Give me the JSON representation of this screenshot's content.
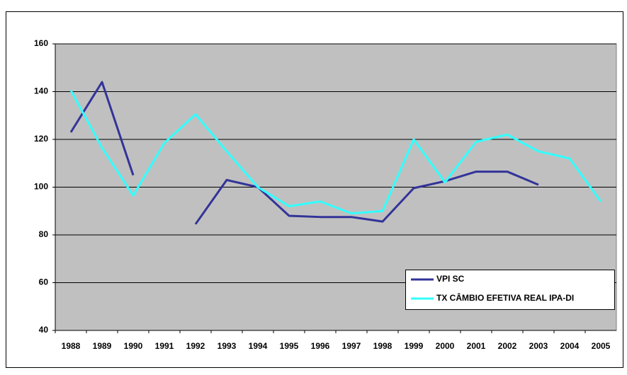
{
  "chart_data": {
    "type": "line",
    "categories": [
      "1988",
      "1989",
      "1990",
      "1991",
      "1992",
      "1993",
      "1994",
      "1995",
      "1996",
      "1997",
      "1998",
      "1999",
      "2000",
      "2001",
      "2002",
      "2003",
      "2004",
      "2005"
    ],
    "series": [
      {
        "name": "VPI SC",
        "color": "#333399",
        "values": [
          123,
          144,
          105,
          null,
          84.5,
          103,
          100,
          88,
          87.5,
          87.5,
          85.6,
          99.6,
          102.5,
          106.5,
          106.5,
          101,
          null,
          null
        ]
      },
      {
        "name": "TX CÂMBIO EFETIVA REAL IPA-DI",
        "color": "#33ffff",
        "values": [
          140.5,
          116.5,
          96.5,
          118.5,
          130.5,
          115,
          100,
          92,
          94,
          89,
          90,
          120,
          102,
          119,
          122,
          115,
          112,
          94
        ]
      }
    ],
    "ylim": [
      40,
      160
    ],
    "yticks": [
      40,
      60,
      80,
      100,
      120,
      140,
      160
    ],
    "grid": true,
    "legend": "lower-right"
  }
}
